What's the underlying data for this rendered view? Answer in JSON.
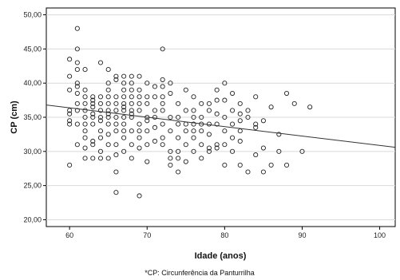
{
  "chart_data": {
    "type": "scatter",
    "xlabel": "Idade (anos)",
    "ylabel": "CP (cm)",
    "xlim": [
      57,
      102
    ],
    "ylim": [
      19,
      51
    ],
    "x_ticks": [
      60,
      70,
      80,
      90,
      100
    ],
    "y_ticks": [
      20,
      25,
      30,
      35,
      40,
      45,
      50
    ],
    "x_tick_labels": [
      "60",
      "70",
      "80",
      "90",
      "100"
    ],
    "y_tick_labels": [
      "20,00",
      "25,00",
      "30,00",
      "35,00",
      "40,00",
      "45,00",
      "50,00"
    ],
    "grid": "horizontal",
    "legend": "none",
    "footnote": "*CP: Circunferência da Panturrilha",
    "fit_line": {
      "x": [
        57,
        102
      ],
      "y": [
        36.8,
        30.6
      ]
    },
    "points": [
      [
        60,
        43.5
      ],
      [
        60,
        41
      ],
      [
        60,
        39
      ],
      [
        60,
        36
      ],
      [
        60,
        35.5
      ],
      [
        60,
        34.5
      ],
      [
        60,
        34
      ],
      [
        60,
        28
      ],
      [
        61,
        48
      ],
      [
        61,
        45
      ],
      [
        61,
        43
      ],
      [
        61,
        42
      ],
      [
        61,
        40
      ],
      [
        61,
        39.5
      ],
      [
        61,
        38.5
      ],
      [
        61,
        37
      ],
      [
        61,
        36
      ],
      [
        61,
        34
      ],
      [
        61,
        31
      ],
      [
        62,
        42
      ],
      [
        62,
        39
      ],
      [
        62,
        38
      ],
      [
        62,
        37
      ],
      [
        62,
        36
      ],
      [
        62,
        35
      ],
      [
        62,
        34
      ],
      [
        62,
        33
      ],
      [
        62,
        32
      ],
      [
        62,
        30.5
      ],
      [
        62,
        29
      ],
      [
        63,
        38
      ],
      [
        63,
        37.5
      ],
      [
        63,
        37
      ],
      [
        63,
        36.5
      ],
      [
        63,
        35.5
      ],
      [
        63,
        35
      ],
      [
        63,
        34
      ],
      [
        63,
        31.5
      ],
      [
        63,
        31
      ],
      [
        63,
        29
      ],
      [
        64,
        43
      ],
      [
        64,
        38
      ],
      [
        64,
        37
      ],
      [
        64,
        36
      ],
      [
        64,
        35
      ],
      [
        64,
        34.5
      ],
      [
        64,
        33
      ],
      [
        64,
        32
      ],
      [
        64,
        30
      ],
      [
        64,
        29
      ],
      [
        65,
        42
      ],
      [
        65,
        40
      ],
      [
        65,
        39
      ],
      [
        65,
        38
      ],
      [
        65,
        37
      ],
      [
        65,
        36
      ],
      [
        65,
        35.5
      ],
      [
        65,
        35
      ],
      [
        65,
        34
      ],
      [
        65,
        32.5
      ],
      [
        65,
        31
      ],
      [
        65,
        29
      ],
      [
        66,
        41
      ],
      [
        66,
        40.5
      ],
      [
        66,
        38
      ],
      [
        66,
        37
      ],
      [
        66,
        36
      ],
      [
        66,
        35
      ],
      [
        66,
        34
      ],
      [
        66,
        33
      ],
      [
        66,
        31
      ],
      [
        66,
        29.5
      ],
      [
        66,
        27
      ],
      [
        66,
        24
      ],
      [
        67,
        41
      ],
      [
        67,
        40
      ],
      [
        67,
        39
      ],
      [
        67,
        38
      ],
      [
        67,
        37
      ],
      [
        67,
        36.5
      ],
      [
        67,
        36
      ],
      [
        67,
        35
      ],
      [
        67,
        34
      ],
      [
        67,
        33
      ],
      [
        67,
        32
      ],
      [
        67,
        30
      ],
      [
        68,
        41
      ],
      [
        68,
        40
      ],
      [
        68,
        39
      ],
      [
        68,
        38
      ],
      [
        68,
        37
      ],
      [
        68,
        36
      ],
      [
        68,
        35.5
      ],
      [
        68,
        35
      ],
      [
        68,
        33
      ],
      [
        68,
        31
      ],
      [
        68,
        29
      ],
      [
        69,
        41
      ],
      [
        69,
        39
      ],
      [
        69,
        38
      ],
      [
        69,
        37
      ],
      [
        69,
        36
      ],
      [
        69,
        34
      ],
      [
        69,
        33
      ],
      [
        69,
        32
      ],
      [
        69,
        30.5
      ],
      [
        69,
        23.5
      ],
      [
        70,
        40
      ],
      [
        70,
        38
      ],
      [
        70,
        37
      ],
      [
        70,
        35
      ],
      [
        70,
        34.5
      ],
      [
        70,
        33
      ],
      [
        70,
        31
      ],
      [
        70,
        28.5
      ],
      [
        71,
        39.5
      ],
      [
        71,
        38
      ],
      [
        71,
        36
      ],
      [
        71,
        35
      ],
      [
        71,
        33.5
      ],
      [
        71,
        31.5
      ],
      [
        72,
        45
      ],
      [
        72,
        40.5
      ],
      [
        72,
        39.5
      ],
      [
        72,
        38
      ],
      [
        72,
        37
      ],
      [
        72,
        36
      ],
      [
        72,
        34
      ],
      [
        72,
        32
      ],
      [
        72,
        31
      ],
      [
        73,
        40
      ],
      [
        73,
        38.5
      ],
      [
        73,
        35
      ],
      [
        73,
        33
      ],
      [
        73,
        30
      ],
      [
        73,
        29
      ],
      [
        73,
        28
      ],
      [
        74,
        37
      ],
      [
        74,
        35
      ],
      [
        74,
        34
      ],
      [
        74,
        32
      ],
      [
        74,
        30
      ],
      [
        74,
        29
      ],
      [
        74,
        27
      ],
      [
        75,
        39
      ],
      [
        75,
        36
      ],
      [
        75,
        34
      ],
      [
        75,
        33
      ],
      [
        75,
        31
      ],
      [
        75,
        28.5
      ],
      [
        76,
        38
      ],
      [
        76,
        36
      ],
      [
        76,
        35
      ],
      [
        76,
        34
      ],
      [
        76,
        33
      ],
      [
        76,
        32
      ],
      [
        76,
        30
      ],
      [
        77,
        37
      ],
      [
        77,
        35
      ],
      [
        77,
        34
      ],
      [
        77,
        33
      ],
      [
        77,
        31
      ],
      [
        77,
        29
      ],
      [
        78,
        37
      ],
      [
        78,
        36
      ],
      [
        78,
        34
      ],
      [
        78,
        32.5
      ],
      [
        78,
        30.5
      ],
      [
        78,
        30
      ],
      [
        79,
        39
      ],
      [
        79,
        37.5
      ],
      [
        79,
        35.5
      ],
      [
        79,
        34
      ],
      [
        79,
        31
      ],
      [
        79,
        30.5
      ],
      [
        80,
        40
      ],
      [
        80,
        37.5
      ],
      [
        80,
        35
      ],
      [
        80,
        33
      ],
      [
        80,
        31
      ],
      [
        80,
        28
      ],
      [
        81,
        38.5
      ],
      [
        81,
        36
      ],
      [
        81,
        34
      ],
      [
        81,
        32
      ],
      [
        81,
        30
      ],
      [
        82,
        37
      ],
      [
        82,
        35.5
      ],
      [
        82,
        34.5
      ],
      [
        82,
        33
      ],
      [
        82,
        31.5
      ],
      [
        82,
        28
      ],
      [
        83,
        36
      ],
      [
        83,
        35
      ],
      [
        83,
        27
      ],
      [
        84,
        38
      ],
      [
        84,
        34
      ],
      [
        84,
        33.5
      ],
      [
        84,
        29.5
      ],
      [
        85,
        34.5
      ],
      [
        85,
        30.5
      ],
      [
        85,
        27
      ],
      [
        86,
        36.5
      ],
      [
        86,
        28
      ],
      [
        87,
        32.5
      ],
      [
        87,
        30
      ],
      [
        88,
        38.5
      ],
      [
        88,
        28
      ],
      [
        89,
        37
      ],
      [
        90,
        30
      ],
      [
        91,
        36.5
      ]
    ]
  }
}
